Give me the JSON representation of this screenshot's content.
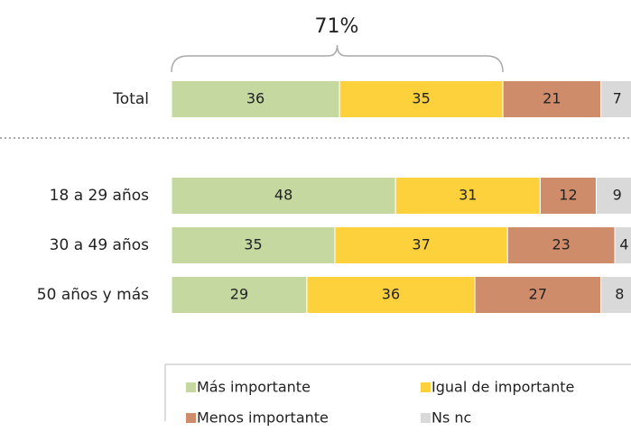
{
  "chart_data": {
    "type": "stacked-bar-horizontal",
    "annotation": "71%",
    "categories": [
      "Total",
      "18 a 29 años",
      "30 a 49 años",
      "50 años y más"
    ],
    "series": [
      {
        "name": "Más importante",
        "color": "#c4d89f",
        "values": [
          36,
          48,
          35,
          29
        ]
      },
      {
        "name": "Igual de importante",
        "color": "#fdd13b",
        "values": [
          35,
          31,
          37,
          36
        ]
      },
      {
        "name": "Menos importante",
        "color": "#cf8c6b",
        "values": [
          21,
          12,
          23,
          27
        ]
      },
      {
        "name": "Ns nc",
        "color": "#d9d9d9",
        "values": [
          7,
          9,
          4,
          8
        ]
      }
    ]
  }
}
